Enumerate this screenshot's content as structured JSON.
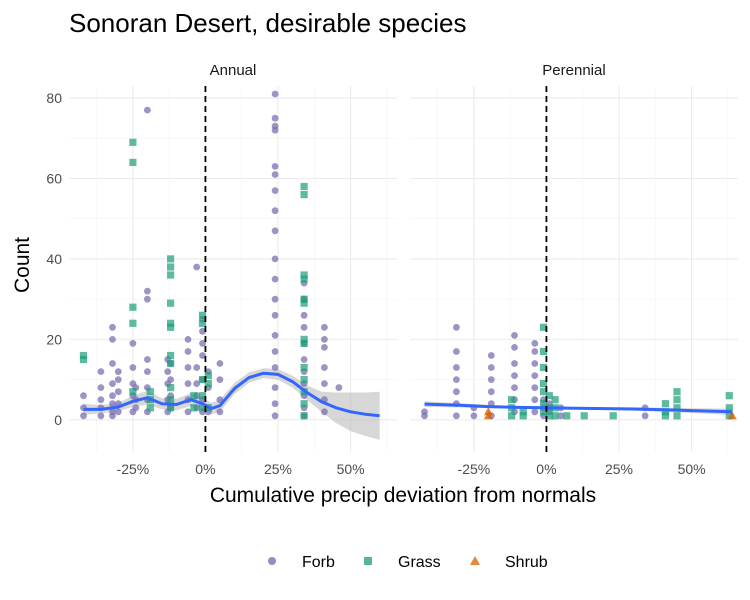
{
  "chart_data": {
    "type": "scatter",
    "title": "Sonoran Desert, desirable species",
    "xlabel": "Cumulative precip deviation from normals",
    "ylabel": "Count",
    "facets": [
      "Annual",
      "Perennial"
    ],
    "x_ticks": [
      "-25%",
      "0%",
      "25%",
      "50%"
    ],
    "x_tick_values": [
      -0.25,
      0,
      0.25,
      0.5
    ],
    "y_ticks": [
      "0",
      "20",
      "40",
      "60",
      "80"
    ],
    "y_tick_values": [
      0,
      20,
      40,
      60,
      80
    ],
    "xlim": [
      -0.47,
      0.66
    ],
    "ylim": [
      -8,
      83
    ],
    "reference_line_x": 0,
    "grid": true,
    "legend_position": "bottom",
    "colors": {
      "Forb": "#7b70b1",
      "Grass": "#1b9e77",
      "Shrub": "#d95f02",
      "smooth": "#3366ff",
      "ribbon": "#bdbdbd"
    },
    "legend": [
      {
        "name": "Forb",
        "shape": "circle"
      },
      {
        "name": "Grass",
        "shape": "square"
      },
      {
        "name": "Shrub",
        "shape": "triangle"
      }
    ],
    "panels": [
      {
        "facet": "Annual",
        "points": {
          "Forb": [
            [
              -0.42,
              1
            ],
            [
              -0.42,
              3
            ],
            [
              -0.42,
              6
            ],
            [
              -0.36,
              1
            ],
            [
              -0.36,
              3
            ],
            [
              -0.36,
              5
            ],
            [
              -0.36,
              8
            ],
            [
              -0.36,
              12
            ],
            [
              -0.32,
              1
            ],
            [
              -0.32,
              2
            ],
            [
              -0.32,
              4
            ],
            [
              -0.32,
              6
            ],
            [
              -0.32,
              9
            ],
            [
              -0.32,
              14
            ],
            [
              -0.32,
              20
            ],
            [
              -0.32,
              23
            ],
            [
              -0.3,
              2
            ],
            [
              -0.3,
              4
            ],
            [
              -0.3,
              7
            ],
            [
              -0.3,
              10
            ],
            [
              -0.3,
              12
            ],
            [
              -0.25,
              2
            ],
            [
              -0.25,
              6
            ],
            [
              -0.25,
              9
            ],
            [
              -0.25,
              13
            ],
            [
              -0.25,
              19
            ],
            [
              -0.24,
              3
            ],
            [
              -0.24,
              5
            ],
            [
              -0.24,
              8
            ],
            [
              -0.2,
              2
            ],
            [
              -0.2,
              5
            ],
            [
              -0.2,
              8
            ],
            [
              -0.2,
              12
            ],
            [
              -0.2,
              15
            ],
            [
              -0.2,
              30
            ],
            [
              -0.2,
              32
            ],
            [
              -0.2,
              77
            ],
            [
              -0.13,
              2
            ],
            [
              -0.13,
              5
            ],
            [
              -0.13,
              9
            ],
            [
              -0.13,
              12
            ],
            [
              -0.13,
              15
            ],
            [
              -0.12,
              3
            ],
            [
              -0.12,
              6
            ],
            [
              -0.12,
              10
            ],
            [
              -0.12,
              14
            ],
            [
              -0.06,
              2
            ],
            [
              -0.06,
              5
            ],
            [
              -0.06,
              9
            ],
            [
              -0.06,
              13
            ],
            [
              -0.06,
              17
            ],
            [
              -0.06,
              20
            ],
            [
              -0.03,
              3
            ],
            [
              -0.03,
              6
            ],
            [
              -0.03,
              9
            ],
            [
              -0.03,
              13
            ],
            [
              -0.03,
              38
            ],
            [
              -0.01,
              2
            ],
            [
              -0.01,
              5
            ],
            [
              -0.01,
              10
            ],
            [
              -0.01,
              16
            ],
            [
              -0.01,
              19
            ],
            [
              -0.01,
              22
            ],
            [
              -0.01,
              25
            ],
            [
              0.01,
              2
            ],
            [
              0.01,
              8
            ],
            [
              0.01,
              12
            ],
            [
              0.05,
              2
            ],
            [
              0.05,
              5
            ],
            [
              0.05,
              10
            ],
            [
              0.05,
              14
            ],
            [
              0.24,
              1
            ],
            [
              0.24,
              4
            ],
            [
              0.24,
              8
            ],
            [
              0.24,
              13
            ],
            [
              0.24,
              17
            ],
            [
              0.24,
              21
            ],
            [
              0.24,
              26
            ],
            [
              0.24,
              30
            ],
            [
              0.24,
              35
            ],
            [
              0.24,
              40
            ],
            [
              0.24,
              47
            ],
            [
              0.24,
              52
            ],
            [
              0.24,
              57
            ],
            [
              0.24,
              61
            ],
            [
              0.24,
              63
            ],
            [
              0.24,
              72
            ],
            [
              0.24,
              73
            ],
            [
              0.24,
              75
            ],
            [
              0.24,
              81
            ],
            [
              0.34,
              1
            ],
            [
              0.34,
              3
            ],
            [
              0.34,
              6
            ],
            [
              0.34,
              9
            ],
            [
              0.34,
              12
            ],
            [
              0.34,
              15
            ],
            [
              0.34,
              19
            ],
            [
              0.34,
              23
            ],
            [
              0.34,
              26
            ],
            [
              0.34,
              30
            ],
            [
              0.34,
              34
            ],
            [
              0.41,
              2
            ],
            [
              0.41,
              5
            ],
            [
              0.41,
              9
            ],
            [
              0.41,
              13
            ],
            [
              0.41,
              18
            ],
            [
              0.41,
              20
            ],
            [
              0.41,
              23
            ],
            [
              0.46,
              8
            ]
          ],
          "Grass": [
            [
              -0.42,
              16
            ],
            [
              -0.42,
              15
            ],
            [
              -0.25,
              69
            ],
            [
              -0.25,
              64
            ],
            [
              -0.25,
              28
            ],
            [
              -0.25,
              24
            ],
            [
              -0.25,
              7
            ],
            [
              -0.19,
              7
            ],
            [
              -0.19,
              5
            ],
            [
              -0.19,
              3
            ],
            [
              -0.12,
              40
            ],
            [
              -0.12,
              38
            ],
            [
              -0.12,
              36
            ],
            [
              -0.12,
              29
            ],
            [
              -0.12,
              24
            ],
            [
              -0.12,
              23
            ],
            [
              -0.12,
              16
            ],
            [
              -0.12,
              14
            ],
            [
              -0.12,
              8
            ],
            [
              -0.12,
              5
            ],
            [
              -0.12,
              3
            ],
            [
              -0.04,
              3
            ],
            [
              -0.04,
              6
            ],
            [
              -0.01,
              26
            ],
            [
              -0.01,
              24
            ],
            [
              -0.01,
              10
            ],
            [
              -0.01,
              6
            ],
            [
              -0.01,
              3
            ],
            [
              0.01,
              11
            ],
            [
              0.01,
              9
            ],
            [
              0.01,
              3
            ],
            [
              0.34,
              58
            ],
            [
              0.34,
              56
            ],
            [
              0.34,
              36
            ],
            [
              0.34,
              35
            ],
            [
              0.34,
              30
            ],
            [
              0.34,
              29
            ],
            [
              0.34,
              20
            ],
            [
              0.34,
              19
            ],
            [
              0.34,
              13
            ],
            [
              0.34,
              10
            ],
            [
              0.34,
              7
            ],
            [
              0.34,
              4
            ],
            [
              0.34,
              1
            ]
          ],
          "Shrub": []
        },
        "smooth": {
          "x": [
            -0.42,
            -0.36,
            -0.3,
            -0.25,
            -0.2,
            -0.15,
            -0.1,
            -0.05,
            -0.01,
            0.02,
            0.05,
            0.1,
            0.15,
            0.2,
            0.25,
            0.3,
            0.35,
            0.4,
            0.45,
            0.5,
            0.55,
            0.6
          ],
          "y": [
            2.6,
            2.6,
            3.2,
            4.6,
            5.5,
            4.0,
            3.8,
            5.0,
            4.0,
            2.8,
            3.5,
            7.8,
            10.5,
            11.6,
            11.3,
            9.5,
            6.8,
            4.5,
            3.0,
            2.0,
            1.4,
            1.0
          ],
          "lower": [
            1.2,
            1.6,
            2.2,
            3.2,
            3.8,
            2.6,
            2.4,
            3.4,
            2.6,
            1.4,
            2.0,
            6.4,
            9.2,
            10.4,
            10.0,
            8.0,
            5.0,
            2.0,
            -0.8,
            -2.8,
            -4.0,
            -5.0
          ],
          "upper": [
            4.0,
            3.6,
            4.2,
            6.0,
            7.2,
            5.4,
            5.2,
            6.6,
            5.4,
            4.2,
            5.0,
            9.2,
            11.8,
            12.8,
            12.6,
            11.0,
            8.6,
            7.0,
            6.8,
            6.8,
            6.8,
            7.0
          ]
        }
      },
      {
        "facet": "Perennial",
        "points": {
          "Forb": [
            [
              -0.42,
              1
            ],
            [
              -0.42,
              2
            ],
            [
              -0.31,
              1
            ],
            [
              -0.31,
              4
            ],
            [
              -0.31,
              7
            ],
            [
              -0.31,
              10
            ],
            [
              -0.31,
              13
            ],
            [
              -0.31,
              17
            ],
            [
              -0.31,
              23
            ],
            [
              -0.25,
              1
            ],
            [
              -0.25,
              3
            ],
            [
              -0.19,
              1
            ],
            [
              -0.19,
              4
            ],
            [
              -0.19,
              7
            ],
            [
              -0.19,
              10
            ],
            [
              -0.19,
              13
            ],
            [
              -0.19,
              16
            ],
            [
              -0.11,
              2
            ],
            [
              -0.11,
              5
            ],
            [
              -0.11,
              8
            ],
            [
              -0.11,
              11
            ],
            [
              -0.11,
              14
            ],
            [
              -0.11,
              18
            ],
            [
              -0.11,
              21
            ],
            [
              -0.04,
              2
            ],
            [
              -0.04,
              5
            ],
            [
              -0.04,
              8
            ],
            [
              -0.04,
              11
            ],
            [
              -0.04,
              14
            ],
            [
              -0.04,
              17
            ],
            [
              -0.04,
              19
            ],
            [
              -0.01,
              1
            ],
            [
              -0.01,
              3
            ],
            [
              -0.01,
              5
            ],
            [
              0.01,
              2
            ],
            [
              0.01,
              4
            ],
            [
              0.05,
              1
            ],
            [
              0.05,
              3
            ],
            [
              0.34,
              1
            ],
            [
              0.34,
              3
            ]
          ],
          "Grass": [
            [
              -0.12,
              5
            ],
            [
              -0.12,
              3
            ],
            [
              -0.12,
              1
            ],
            [
              -0.08,
              2
            ],
            [
              -0.08,
              1
            ],
            [
              -0.01,
              23
            ],
            [
              -0.01,
              17
            ],
            [
              -0.01,
              13
            ],
            [
              -0.01,
              9
            ],
            [
              -0.01,
              7
            ],
            [
              -0.01,
              4
            ],
            [
              -0.01,
              2
            ],
            [
              0.01,
              6
            ],
            [
              0.01,
              3
            ],
            [
              0.01,
              1
            ],
            [
              0.03,
              5
            ],
            [
              0.03,
              3
            ],
            [
              0.03,
              1
            ],
            [
              0.07,
              1
            ],
            [
              0.13,
              1
            ],
            [
              0.23,
              1
            ],
            [
              0.41,
              4
            ],
            [
              0.41,
              2
            ],
            [
              0.41,
              1
            ],
            [
              0.45,
              7
            ],
            [
              0.45,
              5
            ],
            [
              0.45,
              3
            ],
            [
              0.45,
              1
            ],
            [
              0.63,
              6
            ],
            [
              0.63,
              3
            ],
            [
              0.63,
              1
            ]
          ],
          "Shrub": [
            [
              -0.2,
              2
            ],
            [
              -0.2,
              1
            ],
            [
              0.64,
              1
            ]
          ]
        },
        "smooth": {
          "x": [
            -0.42,
            -0.3,
            -0.2,
            -0.1,
            0.0,
            0.1,
            0.2,
            0.3,
            0.4,
            0.5,
            0.64
          ],
          "y": [
            3.9,
            3.6,
            3.3,
            3.1,
            3.0,
            2.9,
            2.8,
            2.7,
            2.5,
            2.3,
            2.0
          ],
          "lower": [
            3.2,
            3.1,
            2.9,
            2.8,
            2.7,
            2.6,
            2.5,
            2.3,
            2.0,
            1.7,
            1.2
          ],
          "upper": [
            4.6,
            4.1,
            3.7,
            3.4,
            3.3,
            3.2,
            3.1,
            3.1,
            3.0,
            2.9,
            2.8
          ]
        }
      }
    ]
  }
}
